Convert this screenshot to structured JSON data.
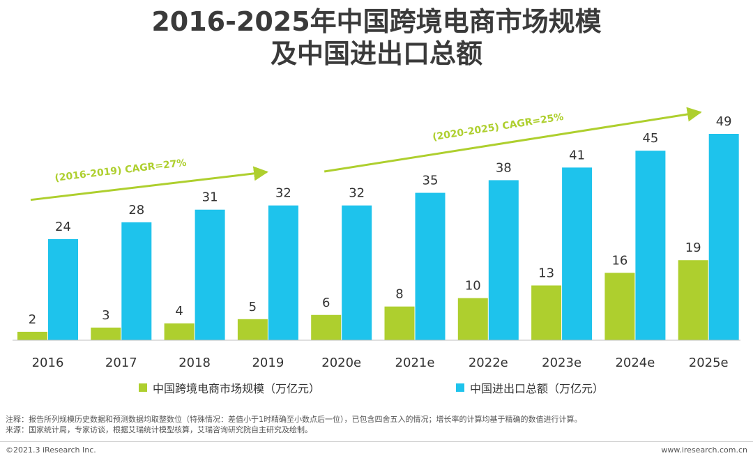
{
  "title": {
    "line1": "2016-2025年中国跨境电商市场规模",
    "line2": "及中国进出口总额"
  },
  "chart_data": {
    "type": "bar",
    "categories": [
      "2016",
      "2017",
      "2018",
      "2019",
      "2020e",
      "2021e",
      "2022e",
      "2023e",
      "2024e",
      "2025e"
    ],
    "series": [
      {
        "name": "中国跨境电商市场规模（万亿元）",
        "color": "#aecf2e",
        "values": [
          2,
          3,
          4,
          5,
          6,
          8,
          10,
          13,
          16,
          19
        ]
      },
      {
        "name": "中国进出口总额（万亿元）",
        "color": "#1ec3ec",
        "values": [
          24,
          28,
          31,
          32,
          32,
          35,
          38,
          41,
          45,
          49
        ]
      }
    ],
    "annotations": [
      {
        "text": "(2016-2019)   CAGR=27%",
        "from_category": "2016",
        "to_category": "2019"
      },
      {
        "text": "(2020-2025)  CAGR=25%",
        "from_category": "2020e",
        "to_category": "2025e"
      }
    ],
    "annotation_color": "#aecf2e",
    "ylim": [
      0,
      49
    ],
    "grid": false,
    "legend": "bottom"
  },
  "notes": {
    "line1": "注释：报告所列规模历史数据和预测数据均取整数位（特殊情况：差值小于1时精确至小数点后一位），已包含四舍五入的情况；增长率的计算均基于精确的数值进行计算。",
    "line2": "来源：国家统计局，专家访谈，根据艾瑞统计模型核算，艾瑞咨询研究院自主研究及绘制。"
  },
  "footer": {
    "copyright": "©2021.3 iResearch Inc.",
    "website": "www.iresearch.com.cn"
  }
}
